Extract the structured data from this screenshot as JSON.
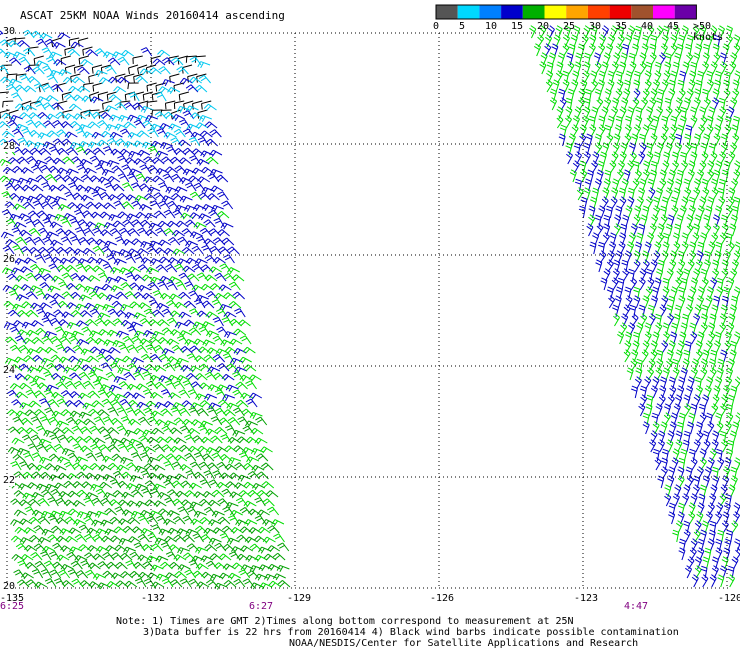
{
  "title": "ASCAT 25KM NOAA Winds 20160414 ascending",
  "legend": {
    "colors": [
      "#555555",
      "#00d8ff",
      "#0080ff",
      "#0000cc",
      "#00b000",
      "#ffff00",
      "#ffa500",
      "#ff4000",
      "#ee0000",
      "#a0522d",
      "#ff00ff",
      "#6a00a8"
    ],
    "labels": [
      "0",
      "5",
      "10",
      "15",
      "20",
      "25",
      "30",
      "35",
      "40",
      "45",
      ">50 knots"
    ]
  },
  "lat_labels": [
    "30",
    "28",
    "26",
    "24",
    "22",
    "20"
  ],
  "lon_labels": [
    "-135",
    "-132",
    "-129",
    "-126",
    "-123",
    "-120"
  ],
  "times": [
    "6:25",
    "6:27",
    "4:47"
  ],
  "notes": {
    "line1": "Note: 1) Times are GMT 2)Times along bottom correspond to measurement at 25N",
    "line2": "3)Data buffer is 22 hrs from 20160414 4) Black wind barbs indicate possible contamination",
    "credit": "NOAA/NESDIS/Center for Satellite Applications and Research"
  },
  "wind_colors": {
    "black": "#000000",
    "cyan": "#00c8f0",
    "blue": "#0000c8",
    "light_green": "#00dd00",
    "green": "#00a000"
  }
}
